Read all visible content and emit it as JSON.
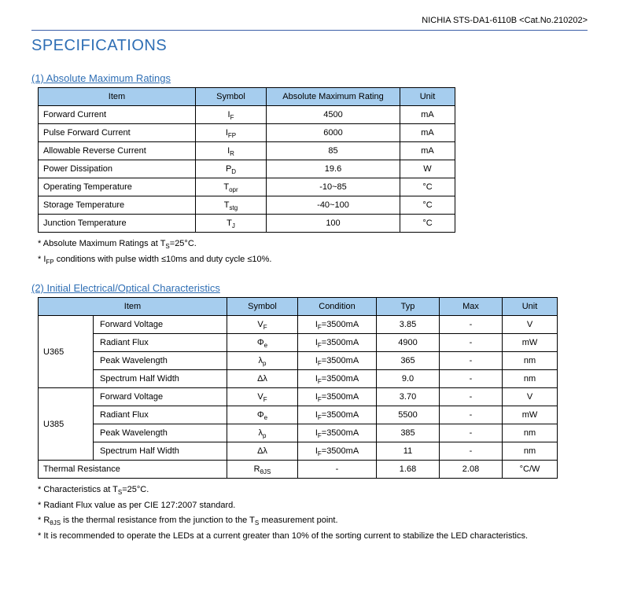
{
  "header": "NICHIA STS-DA1-6110B <Cat.No.210202>",
  "title": "SPECIFICATIONS",
  "section1": {
    "title": "(1) Absolute Maximum Ratings",
    "columns": {
      "item": "Item",
      "symbol": "Symbol",
      "rating": "Absolute Maximum Rating",
      "unit": "Unit"
    },
    "widths": {
      "item": 200,
      "symbol": 90,
      "rating": 170,
      "unit": 70
    },
    "rows": [
      {
        "item": "Forward Current",
        "symbol_html": "I<sub>F</sub>",
        "rating": "4500",
        "unit": "mA"
      },
      {
        "item": "Pulse Forward Current",
        "symbol_html": "I<sub>FP</sub>",
        "rating": "6000",
        "unit": "mA"
      },
      {
        "item": "Allowable Reverse Current",
        "symbol_html": "I<sub>R</sub>",
        "rating": "85",
        "unit": "mA"
      },
      {
        "item": "Power Dissipation",
        "symbol_html": "P<sub>D</sub>",
        "rating": "19.6",
        "unit": "W"
      },
      {
        "item": "Operating Temperature",
        "symbol_html": "T<sub>opr</sub>",
        "rating": "-10~85",
        "unit": "°C"
      },
      {
        "item": "Storage Temperature",
        "symbol_html": "T<sub>stg</sub>",
        "rating": "-40~100",
        "unit": "°C"
      },
      {
        "item": "Junction Temperature",
        "symbol_html": "T<sub>J</sub>",
        "rating": "100",
        "unit": "°C"
      }
    ],
    "notes": [
      "* Absolute Maximum Ratings at T<sub>S</sub>=25°C.",
      "* I<sub>FP</sub> conditions with pulse width ≤10ms and duty cycle ≤10%."
    ]
  },
  "section2": {
    "title": "(2) Initial Electrical/Optical Characteristics",
    "columns": {
      "item": "Item",
      "symbol": "Symbol",
      "condition": "Condition",
      "typ": "Typ",
      "max": "Max",
      "unit": "Unit"
    },
    "widths": {
      "itemGroup": 70,
      "itemSub": 170,
      "symbol": 90,
      "condition": 100,
      "typ": 80,
      "max": 80,
      "unit": 70
    },
    "groups": [
      {
        "name": "U365",
        "rows": [
          {
            "sub": "Forward Voltage",
            "symbol_html": "V<sub>F</sub>",
            "condition_html": "I<sub>F</sub>=3500mA",
            "typ": "3.85",
            "max": "-",
            "unit": "V"
          },
          {
            "sub": "Radiant Flux",
            "symbol_html": "Φ<sub>e</sub>",
            "condition_html": "I<sub>F</sub>=3500mA",
            "typ": "4900",
            "max": "-",
            "unit": "mW"
          },
          {
            "sub": "Peak Wavelength",
            "symbol_html": "λ<sub>p</sub>",
            "condition_html": "I<sub>F</sub>=3500mA",
            "typ": "365",
            "max": "-",
            "unit": "nm"
          },
          {
            "sub": "Spectrum Half Width",
            "symbol_html": "Δλ",
            "condition_html": "I<sub>F</sub>=3500mA",
            "typ": "9.0",
            "max": "-",
            "unit": "nm"
          }
        ]
      },
      {
        "name": "U385",
        "rows": [
          {
            "sub": "Forward Voltage",
            "symbol_html": "V<sub>F</sub>",
            "condition_html": "I<sub>F</sub>=3500mA",
            "typ": "3.70",
            "max": "-",
            "unit": "V"
          },
          {
            "sub": "Radiant Flux",
            "symbol_html": "Φ<sub>e</sub>",
            "condition_html": "I<sub>F</sub>=3500mA",
            "typ": "5500",
            "max": "-",
            "unit": "mW"
          },
          {
            "sub": "Peak Wavelength",
            "symbol_html": "λ<sub>p</sub>",
            "condition_html": "I<sub>F</sub>=3500mA",
            "typ": "385",
            "max": "-",
            "unit": "nm"
          },
          {
            "sub": "Spectrum Half Width",
            "symbol_html": "Δλ",
            "condition_html": "I<sub>F</sub>=3500mA",
            "typ": "11",
            "max": "-",
            "unit": "nm"
          }
        ]
      }
    ],
    "final_row": {
      "item": "Thermal Resistance",
      "symbol_html": "R<sub>θJS</sub>",
      "condition": "-",
      "typ": "1.68",
      "max": "2.08",
      "unit": "°C/W"
    },
    "notes": [
      "* Characteristics at T<sub>S</sub>=25°C.",
      "* Radiant Flux value as per CIE 127:2007 standard.",
      "* R<sub>θJS</sub> is the thermal resistance from the junction to the T<sub>S</sub> measurement point.",
      "* It is recommended to operate the LEDs at a current greater than 10% of the sorting current to stabilize the LED characteristics."
    ]
  }
}
